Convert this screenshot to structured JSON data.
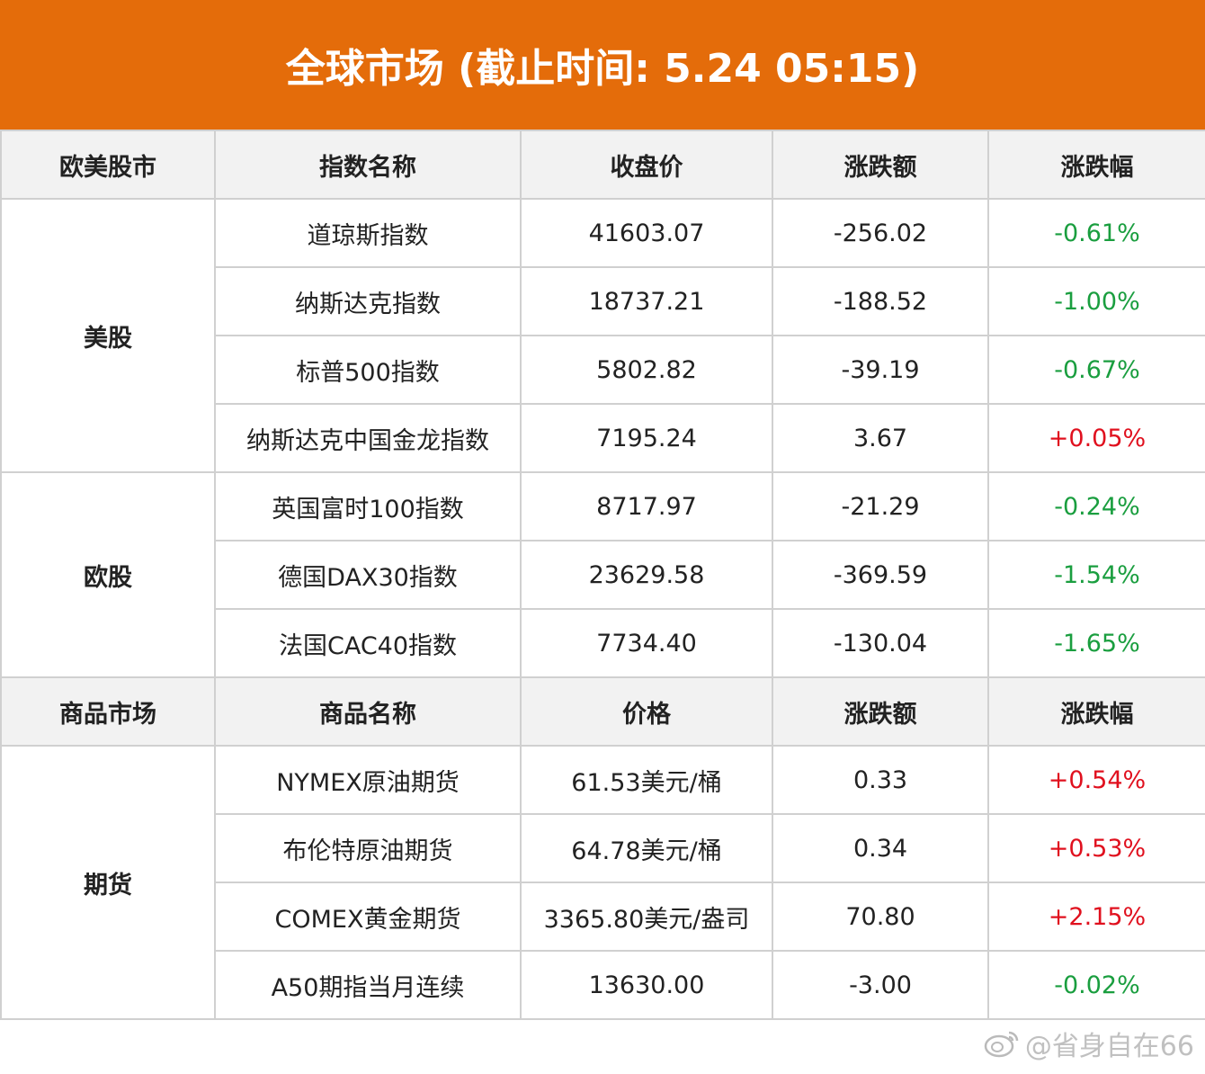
{
  "header": {
    "title": "全球市场 (截止时间: 5.24 05:15)",
    "bg_color": "#e46c0a"
  },
  "colors": {
    "negative": "#1a9e3f",
    "positive": "#e0101e"
  },
  "stock_section": {
    "headers": [
      "欧美股市",
      "指数名称",
      "收盘价",
      "涨跌额",
      "涨跌幅"
    ],
    "groups": [
      {
        "name": "美股",
        "rows": [
          {
            "name": "道琼斯指数",
            "price": "41603.07",
            "change": "-256.02",
            "pct": "-0.61%"
          },
          {
            "name": "纳斯达克指数",
            "price": "18737.21",
            "change": "-188.52",
            "pct": "-1.00%"
          },
          {
            "name": "标普500指数",
            "price": "5802.82",
            "change": "-39.19",
            "pct": "-0.67%"
          },
          {
            "name": "纳斯达克中国金龙指数",
            "price": "7195.24",
            "change": "3.67",
            "pct": "+0.05%"
          }
        ]
      },
      {
        "name": "欧股",
        "rows": [
          {
            "name": "英国富时100指数",
            "price": "8717.97",
            "change": "-21.29",
            "pct": "-0.24%"
          },
          {
            "name": "德国DAX30指数",
            "price": "23629.58",
            "change": "-369.59",
            "pct": "-1.54%"
          },
          {
            "name": "法国CAC40指数",
            "price": "7734.40",
            "change": "-130.04",
            "pct": "-1.65%"
          }
        ]
      }
    ]
  },
  "commodity_section": {
    "headers": [
      "商品市场",
      "商品名称",
      "价格",
      "涨跌额",
      "涨跌幅"
    ],
    "groups": [
      {
        "name": "期货",
        "rows": [
          {
            "name": "NYMEX原油期货",
            "price": "61.53美元/桶",
            "change": "0.33",
            "pct": "+0.54%"
          },
          {
            "name": "布伦特原油期货",
            "price": "64.78美元/桶",
            "change": "0.34",
            "pct": "+0.53%"
          },
          {
            "name": "COMEX黄金期货",
            "price": "3365.80美元/盎司",
            "change": "70.80",
            "pct": "+2.15%"
          },
          {
            "name": "A50期指当月连续",
            "price": "13630.00",
            "change": "-3.00",
            "pct": "-0.02%"
          }
        ]
      }
    ]
  },
  "watermark": {
    "text": "@省身自在66",
    "icon": "weibo-icon"
  }
}
